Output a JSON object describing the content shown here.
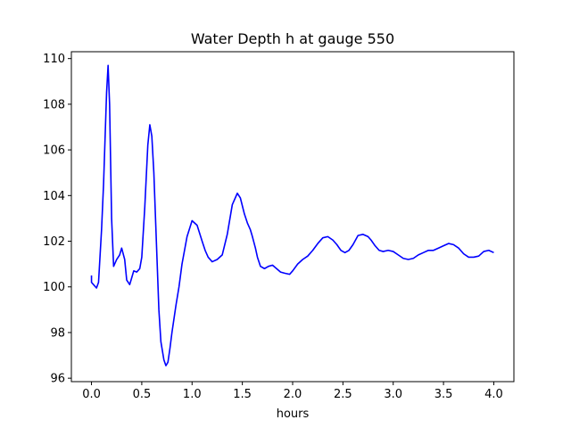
{
  "chart_data": {
    "type": "line",
    "title": "Water Depth h at gauge 550",
    "xlabel": "hours",
    "ylabel": "",
    "xlim": [
      -0.2,
      4.2
    ],
    "ylim": [
      95.85,
      110.3
    ],
    "xticks": [
      0.0,
      0.5,
      1.0,
      1.5,
      2.0,
      2.5,
      3.0,
      3.5,
      4.0
    ],
    "xtick_labels": [
      "0.0",
      "0.5",
      "1.0",
      "1.5",
      "2.0",
      "2.5",
      "3.0",
      "3.5",
      "4.0"
    ],
    "yticks": [
      96,
      98,
      100,
      102,
      104,
      106,
      108,
      110
    ],
    "ytick_labels": [
      "96",
      "98",
      "100",
      "102",
      "104",
      "106",
      "108",
      "110"
    ],
    "grid": false,
    "series": [
      {
        "color": "#0000ff",
        "x": [
          0.0,
          0.0,
          0.02,
          0.05,
          0.07,
          0.1,
          0.12,
          0.15,
          0.165,
          0.18,
          0.2,
          0.22,
          0.25,
          0.28,
          0.3,
          0.33,
          0.35,
          0.38,
          0.4,
          0.42,
          0.45,
          0.48,
          0.5,
          0.53,
          0.56,
          0.58,
          0.6,
          0.62,
          0.645,
          0.67,
          0.69,
          0.72,
          0.74,
          0.76,
          0.78,
          0.8,
          0.82,
          0.84,
          0.87,
          0.9,
          0.95,
          1.0,
          1.05,
          1.1,
          1.13,
          1.16,
          1.2,
          1.25,
          1.3,
          1.35,
          1.4,
          1.45,
          1.48,
          1.52,
          1.55,
          1.58,
          1.6,
          1.63,
          1.65,
          1.68,
          1.72,
          1.76,
          1.8,
          1.84,
          1.88,
          1.92,
          1.97,
          2.0,
          2.05,
          2.1,
          2.15,
          2.2,
          2.25,
          2.3,
          2.35,
          2.4,
          2.44,
          2.48,
          2.52,
          2.56,
          2.6,
          2.65,
          2.7,
          2.75,
          2.78,
          2.82,
          2.86,
          2.9,
          2.95,
          3.0,
          3.05,
          3.1,
          3.15,
          3.2,
          3.25,
          3.3,
          3.35,
          3.4,
          3.45,
          3.5,
          3.55,
          3.6,
          3.65,
          3.7,
          3.75,
          3.8,
          3.85,
          3.9,
          3.95,
          4.0
        ],
        "y": [
          100.5,
          100.2,
          100.1,
          99.95,
          100.2,
          102.5,
          104.5,
          108.5,
          109.7,
          108.0,
          103.0,
          100.9,
          101.2,
          101.4,
          101.7,
          101.2,
          100.3,
          100.1,
          100.4,
          100.7,
          100.65,
          100.8,
          101.3,
          103.5,
          106.2,
          107.1,
          106.6,
          105.0,
          102.0,
          99.0,
          97.6,
          96.8,
          96.55,
          96.7,
          97.3,
          98.0,
          98.6,
          99.2,
          100.0,
          101.0,
          102.2,
          102.9,
          102.7,
          102.0,
          101.6,
          101.3,
          101.1,
          101.2,
          101.4,
          102.3,
          103.6,
          104.1,
          103.9,
          103.2,
          102.8,
          102.5,
          102.2,
          101.7,
          101.3,
          100.9,
          100.8,
          100.9,
          100.95,
          100.8,
          100.65,
          100.6,
          100.55,
          100.7,
          101.0,
          101.2,
          101.35,
          101.6,
          101.9,
          102.15,
          102.2,
          102.05,
          101.85,
          101.6,
          101.5,
          101.6,
          101.85,
          102.25,
          102.3,
          102.2,
          102.05,
          101.8,
          101.6,
          101.55,
          101.6,
          101.55,
          101.4,
          101.25,
          101.2,
          101.25,
          101.4,
          101.5,
          101.6,
          101.6,
          101.7,
          101.8,
          101.9,
          101.85,
          101.7,
          101.45,
          101.3,
          101.3,
          101.35,
          101.55,
          101.6,
          101.5
        ]
      }
    ]
  }
}
